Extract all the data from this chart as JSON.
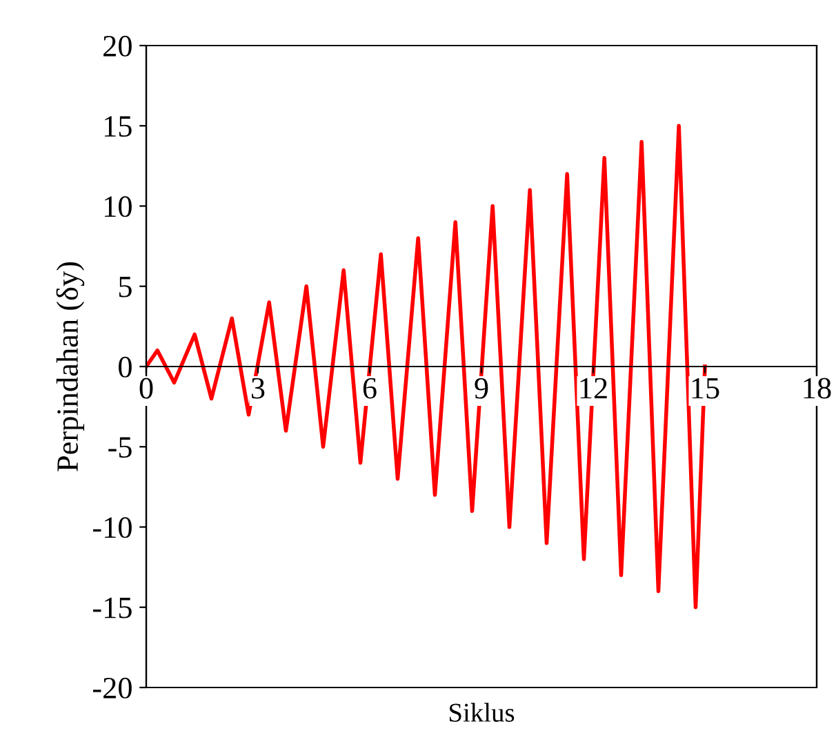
{
  "chart_data": {
    "type": "line",
    "xlabel": "Siklus",
    "ylabel": "Perpindahan (δy)",
    "x": [
      0,
      0.3,
      0.75,
      1.3,
      1.75,
      2.3,
      2.75,
      3.3,
      3.75,
      4.3,
      4.75,
      5.3,
      5.75,
      6.3,
      6.75,
      7.3,
      7.75,
      8.3,
      8.75,
      9.3,
      9.75,
      10.3,
      10.75,
      11.3,
      11.75,
      12.3,
      12.75,
      13.3,
      13.75,
      14.3,
      14.75,
      15
    ],
    "series": [
      {
        "color": "#ff0000",
        "values": [
          0,
          1,
          -1,
          2,
          -2,
          3,
          -3,
          4,
          -4,
          5,
          -5,
          6,
          -6,
          7,
          -7,
          8,
          -8,
          9,
          -9,
          10,
          -10,
          11,
          -11,
          12,
          -12,
          13,
          -13,
          14,
          -14,
          15,
          -15,
          0
        ]
      }
    ],
    "xlim": [
      0,
      18
    ],
    "xticks": [
      0,
      3,
      6,
      9,
      12,
      15,
      18
    ],
    "ylim": [
      -20,
      20
    ],
    "yticks": [
      -20,
      -15,
      -10,
      -5,
      0,
      5,
      10,
      15,
      20
    ],
    "grid": false,
    "legend": false,
    "marker": "none",
    "line_style": "solid"
  }
}
